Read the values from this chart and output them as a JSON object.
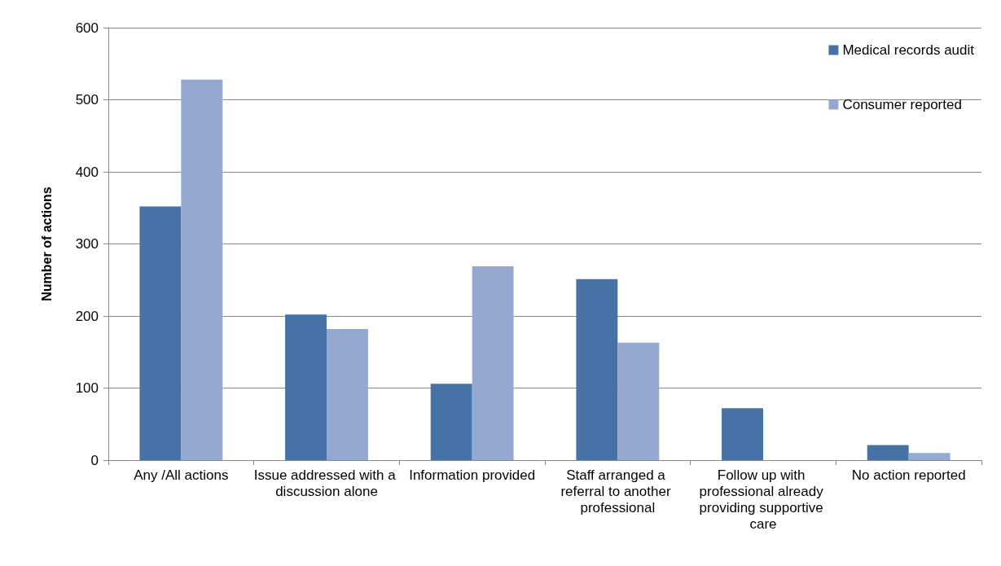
{
  "chart_data": {
    "type": "bar",
    "ylabel": "Number of actions",
    "categories": [
      "Any /All actions",
      "Issue addressed with a discussion alone",
      "Information provided",
      "Staff arranged a referral to another professional",
      "Follow up with professional already providing supportive care",
      "No action reported"
    ],
    "series": [
      {
        "name": "Medical records audit",
        "color": "#4672a6",
        "values": [
          352,
          202,
          106,
          251,
          72,
          21
        ]
      },
      {
        "name": "Consumer reported",
        "color": "#95a9d0",
        "values": [
          528,
          182,
          269,
          163,
          0,
          10
        ]
      }
    ],
    "ylim": [
      0,
      600
    ],
    "yticks": [
      0,
      100,
      200,
      300,
      400,
      500,
      600
    ],
    "grid": "y",
    "legend": "top right"
  }
}
